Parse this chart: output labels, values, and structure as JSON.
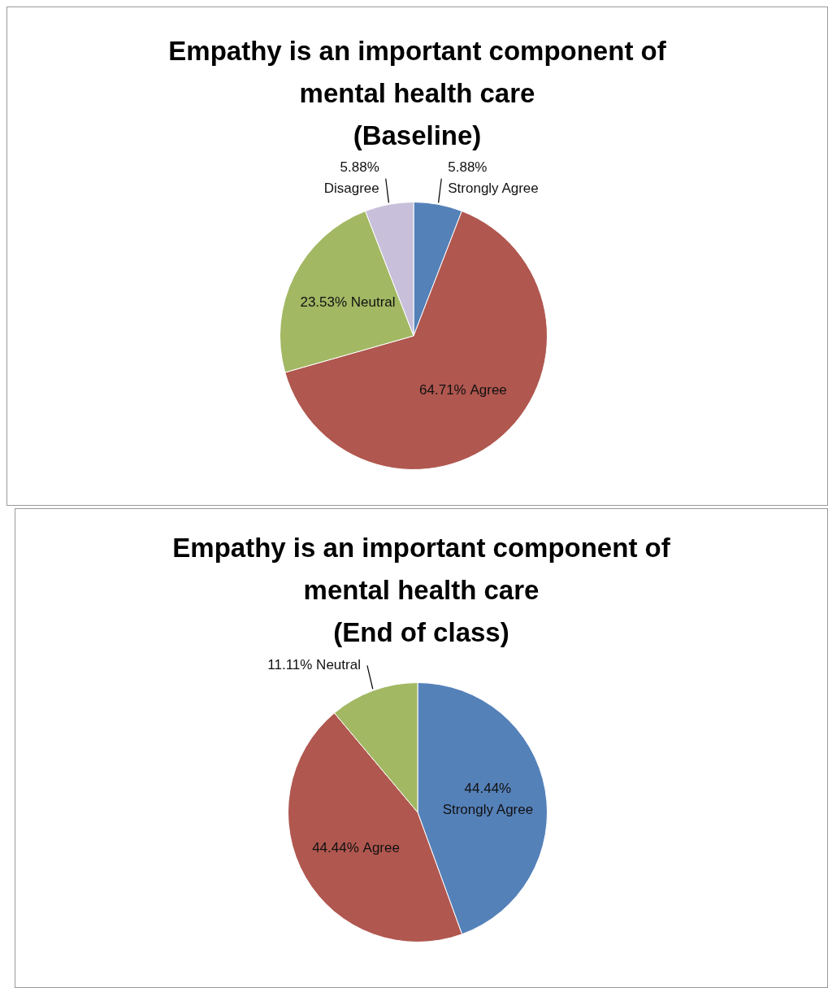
{
  "chart_data": [
    {
      "type": "pie",
      "title": "Empathy is an important component of\nmental health care\n(Baseline)",
      "categories": [
        "Strongly Agree",
        "Agree",
        "Neutral",
        "Disagree"
      ],
      "values": [
        5.88,
        64.71,
        23.53,
        5.88
      ],
      "colors": [
        "#5581b9",
        "#b0574f",
        "#a2b863",
        "#c8c0da"
      ],
      "value_labels": [
        "5.88%",
        "64.71%",
        "23.53%",
        "5.88%"
      ]
    },
    {
      "type": "pie",
      "title": "Empathy is an important component of\nmental health care\n(End of class)",
      "categories": [
        "Strongly Agree",
        "Agree",
        "Neutral"
      ],
      "values": [
        44.44,
        44.44,
        11.11
      ],
      "colors": [
        "#5581b9",
        "#b0574f",
        "#a2b863"
      ],
      "value_labels": [
        "44.44%",
        "44.44%",
        "11.11%"
      ]
    }
  ]
}
